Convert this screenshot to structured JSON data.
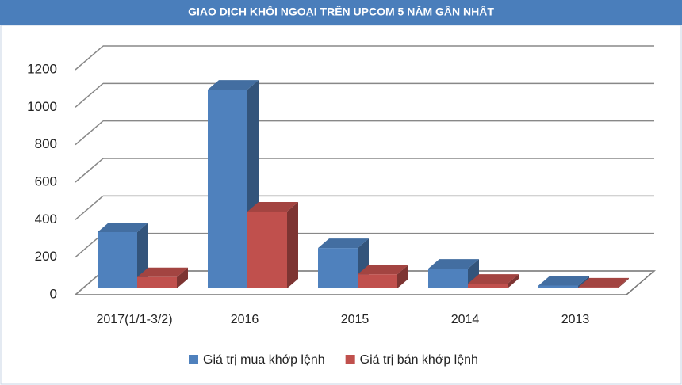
{
  "chart_data": {
    "type": "bar3d",
    "title": "GIAO DỊCH KHỐI NGOẠI TRÊN UPCOM 5 NĂM GẦN NHẤT",
    "categories": [
      "2017(1/1-3/2)",
      "2016",
      "2015",
      "2014",
      "2013"
    ],
    "series": [
      {
        "name": "Giá trị mua khớp lệnh",
        "color": "#4f81bd",
        "values": [
          300,
          1060,
          215,
          105,
          15
        ]
      },
      {
        "name": "Giá trị bán khớp lệnh",
        "color": "#c0504d",
        "values": [
          60,
          410,
          75,
          25,
          5
        ]
      }
    ],
    "ylim": [
      0,
      1200
    ],
    "yticks": [
      0,
      200,
      400,
      600,
      800,
      1000,
      1200
    ],
    "grid": true
  }
}
